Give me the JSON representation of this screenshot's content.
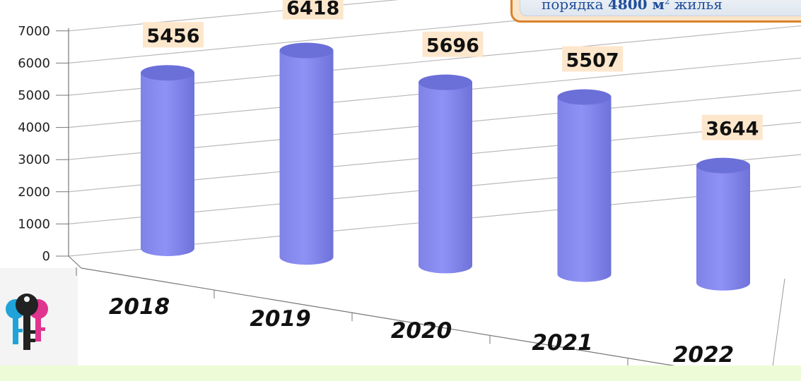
{
  "note": {
    "prefix": "порядка ",
    "value": "4800 м",
    "superscript": "2",
    "suffix": " жилья"
  },
  "logo": {
    "icon": "keys-icon"
  },
  "colors": {
    "bar": "#8f92f5",
    "bar_top": "#6b6fd8",
    "label_bg": "#fde7cc",
    "note_border": "#d9822b",
    "band": "#eefbd7"
  },
  "chart_data": {
    "type": "bar",
    "style": "3d-cylinder",
    "categories": [
      "2018",
      "2019",
      "2020",
      "2021",
      "2022"
    ],
    "values": [
      5456,
      6418,
      5696,
      5507,
      3644
    ],
    "data_labels": [
      "5456",
      "6418",
      "5696",
      "5507",
      "3644"
    ],
    "y_ticks": [
      "0",
      "1000",
      "2000",
      "3000",
      "4000",
      "5000",
      "6000",
      "7000"
    ],
    "ylim": [
      0,
      7000
    ],
    "grid": true,
    "title": "",
    "xlabel": "",
    "ylabel": ""
  }
}
